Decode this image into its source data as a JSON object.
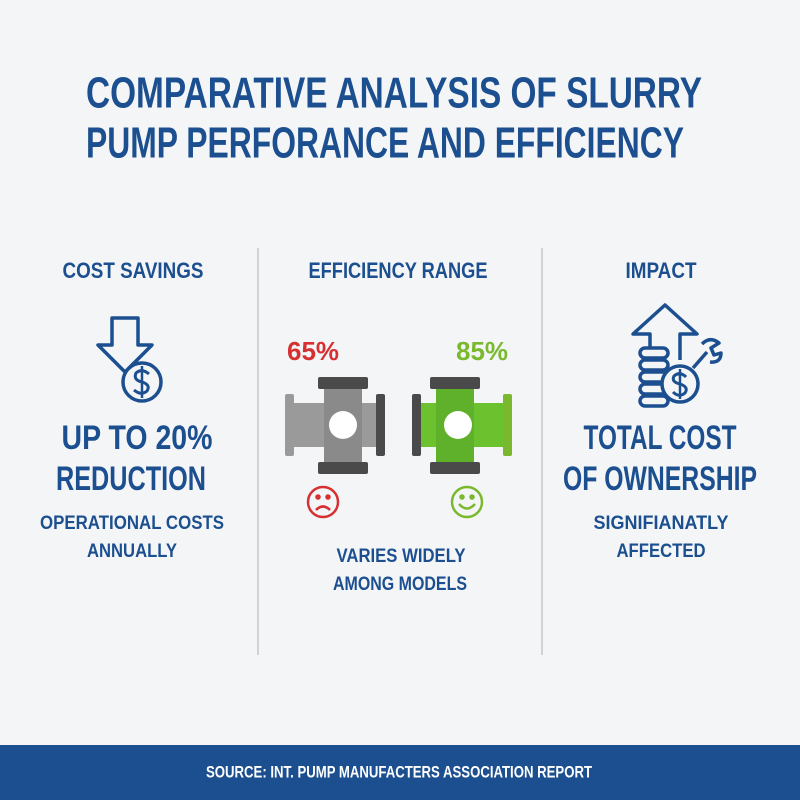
{
  "header": {
    "title_lines": [
      "COMPARATIVE ANALYSIS OF SLURRY",
      "PUMP PERFORANCE AND EFFICIENCY"
    ]
  },
  "columns": [
    {
      "heading": "COST SAVINGS",
      "headline_lines": [
        "UP TO 20%",
        "REDUCTION"
      ],
      "detail_lines": [
        "OPERATIONAL COSTS",
        "ANNUALLY"
      ]
    },
    {
      "heading": "EFFICIENCY RANGE",
      "low": "65%",
      "high": "85%",
      "detail_lines": [
        "VARIES WIDELY",
        "AMONG MODELS"
      ]
    },
    {
      "heading": "IMPACT",
      "headline_lines": [
        "TOTAL COST",
        "OF OWNERSHIP"
      ],
      "detail_lines": [
        "SIGNIFIANATLY",
        "AFFECTED"
      ]
    }
  ],
  "footer": {
    "source": "SOURCE: INT. PUMP MANUFACTERS ASSOCIATION REPORT"
  }
}
